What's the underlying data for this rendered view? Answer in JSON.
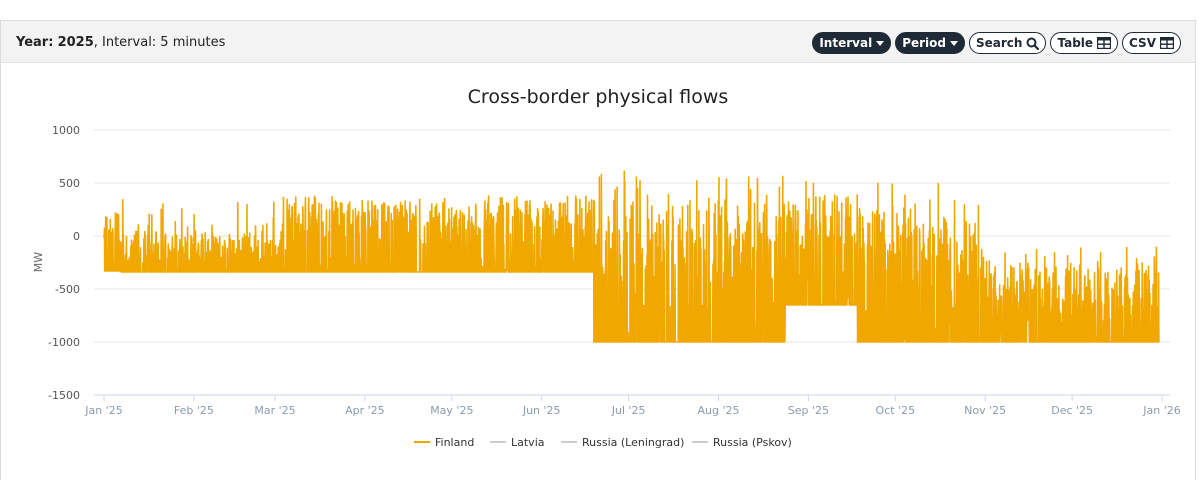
{
  "header": {
    "year_label": "Year:",
    "year_value": "2025",
    "interval_text": ", Interval: 5 minutes",
    "buttons": {
      "interval": "Interval",
      "period": "Period",
      "search": "Search",
      "table": "Table",
      "csv": "CSV"
    }
  },
  "colors": {
    "finland": "#f0a800",
    "grid": "#e6e6e6",
    "axis": "#ccd6eb",
    "legend_gray": "#cccccc"
  },
  "chart_data": {
    "type": "line",
    "title": "Cross-border physical flows",
    "ylabel": "MW",
    "xlabel": "",
    "ylim": [
      -1500,
      1000
    ],
    "yticks": [
      1000,
      500,
      0,
      -500,
      -1000,
      -1500
    ],
    "xlim": [
      "2025-01-01",
      "2026-01-01"
    ],
    "xticks": [
      {
        "date": "2025-01-01",
        "label": "Jan '25"
      },
      {
        "date": "2025-02-01",
        "label": "Feb '25"
      },
      {
        "date": "2025-03-01",
        "label": "Mar '25"
      },
      {
        "date": "2025-04-01",
        "label": "Apr '25"
      },
      {
        "date": "2025-05-01",
        "label": "May '25"
      },
      {
        "date": "2025-06-01",
        "label": "Jun '25"
      },
      {
        "date": "2025-07-01",
        "label": "Jul '25"
      },
      {
        "date": "2025-08-01",
        "label": "Aug '25"
      },
      {
        "date": "2025-09-01",
        "label": "Sep '25"
      },
      {
        "date": "2025-10-01",
        "label": "Oct '25"
      },
      {
        "date": "2025-11-01",
        "label": "Nov '25"
      },
      {
        "date": "2025-12-01",
        "label": "Dec '25"
      },
      {
        "date": "2026-01-01",
        "label": "Jan '26"
      }
    ],
    "legend_placement": "bottom",
    "grid": true,
    "series": [
      {
        "name": "Finland",
        "color": "#f0a800",
        "phases": [
          {
            "from": "2025-01-01",
            "to": "2025-01-07",
            "baseline": -330,
            "peaks": [
              380,
              350,
              300,
              200,
              150,
              250
            ]
          },
          {
            "from": "2025-01-07",
            "to": "2025-03-05",
            "baseline": -340,
            "peaks": [
              380,
              100,
              0,
              -50,
              -100,
              0,
              50
            ]
          },
          {
            "from": "2025-03-05",
            "to": "2025-06-19",
            "baseline": -340,
            "peaks": [
              380,
              380,
              350,
              380,
              300,
              380
            ]
          },
          {
            "from": "2025-06-19",
            "to": "2025-08-24",
            "baseline": -1000,
            "peaks": [
              450,
              550,
              350,
              600,
              620,
              300
            ]
          },
          {
            "from": "2025-08-24",
            "to": "2025-09-18",
            "baseline": -650,
            "peaks": [
              540,
              300,
              400,
              100
            ]
          },
          {
            "from": "2025-09-18",
            "to": "2025-10-31",
            "baseline": -1000,
            "peaks": [
              500,
              350,
              200,
              280,
              100
            ]
          },
          {
            "from": "2025-10-31",
            "to": "2025-12-31",
            "baseline": -1000,
            "peaks": [
              -300,
              -250,
              -100,
              -500,
              -300
            ]
          }
        ]
      },
      {
        "name": "Latvia",
        "values": []
      },
      {
        "name": "Russia (Leningrad)",
        "values": []
      },
      {
        "name": "Russia (Pskov)",
        "values": []
      }
    ]
  }
}
